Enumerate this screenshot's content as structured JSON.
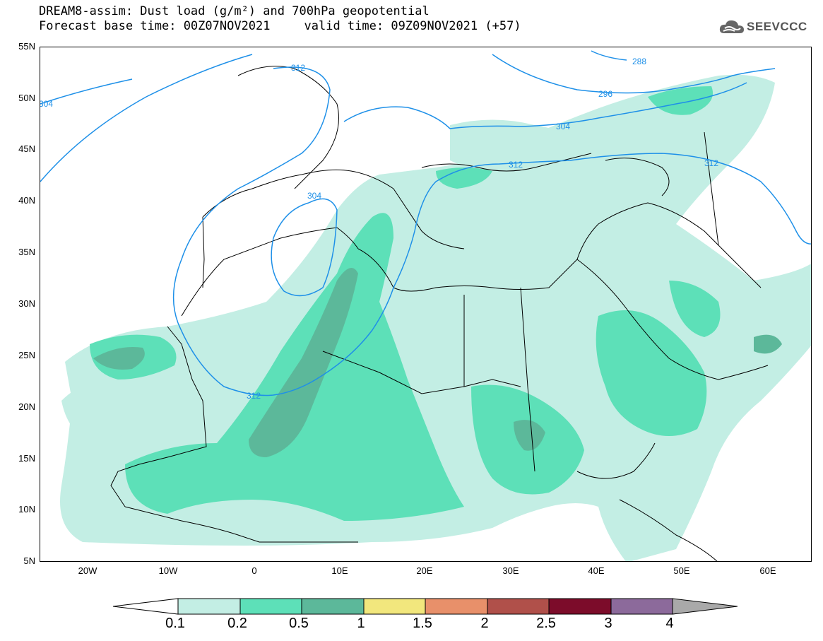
{
  "title": {
    "line1": "DREAM8-assim: Dust load (g/m²) and 700hPa geopotential",
    "base_time": "Forecast base time: 00Z07NOV2021",
    "valid_time": "valid time: 09Z09NOV2021 (+57)"
  },
  "logo": {
    "text": "SEEVCCC",
    "icon": "cloud-icon"
  },
  "map": {
    "lat_ticks": [
      "55N",
      "50N",
      "45N",
      "40N",
      "35N",
      "30N",
      "25N",
      "20N",
      "15N",
      "10N",
      "5N"
    ],
    "lon_ticks": [
      "20W",
      "10W",
      "0",
      "10E",
      "20E",
      "30E",
      "40E",
      "50E",
      "60E"
    ],
    "contour_labels": [
      "288",
      "296",
      "304",
      "304",
      "304",
      "312",
      "312",
      "312",
      "312"
    ]
  },
  "colorbar": {
    "labels": [
      "0.1",
      "0.2",
      "0.5",
      "1",
      "1.5",
      "2",
      "2.5",
      "3",
      "4"
    ],
    "colors": [
      "#ffffff",
      "#c3eee4",
      "#5de0b8",
      "#5cb89a",
      "#f2e77d",
      "#e8906a",
      "#b0504a",
      "#7c0c2a",
      "#8c6a9b",
      "#a9a9a9"
    ]
  }
}
